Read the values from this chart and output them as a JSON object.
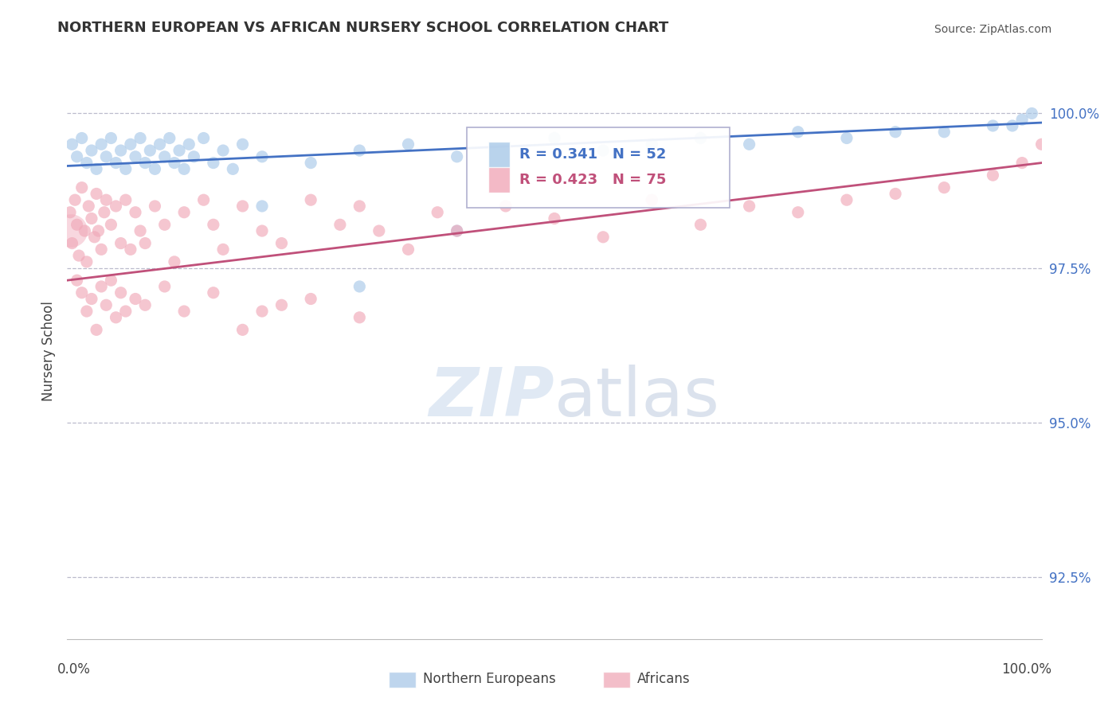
{
  "title": "NORTHERN EUROPEAN VS AFRICAN NURSERY SCHOOL CORRELATION CHART",
  "source": "Source: ZipAtlas.com",
  "ylabel": "Nursery School",
  "yticks": [
    92.5,
    95.0,
    97.5,
    100.0
  ],
  "ytick_labels": [
    "92.5%",
    "95.0%",
    "97.5%",
    "100.0%"
  ],
  "blue_R": 0.341,
  "blue_N": 52,
  "pink_R": 0.423,
  "pink_N": 75,
  "blue_color": "#A8C8E8",
  "pink_color": "#F0A8B8",
  "blue_line_color": "#4472C4",
  "pink_line_color": "#C0507A",
  "ytick_color": "#4472C4",
  "legend_label_blue": "Northern Europeans",
  "legend_label_pink": "Africans",
  "xlim": [
    0,
    100
  ],
  "ylim": [
    91.5,
    100.8
  ],
  "blue_points_x": [
    0.5,
    1.0,
    1.5,
    2.0,
    2.5,
    3.0,
    3.5,
    4.0,
    4.5,
    5.0,
    5.5,
    6.0,
    6.5,
    7.0,
    7.5,
    8.0,
    8.5,
    9.0,
    9.5,
    10.0,
    10.5,
    11.0,
    11.5,
    12.0,
    12.5,
    13.0,
    14.0,
    15.0,
    16.0,
    17.0,
    18.0,
    20.0,
    25.0,
    30.0,
    35.0,
    40.0,
    50.0,
    55.0,
    60.0,
    65.0,
    70.0,
    75.0,
    80.0,
    85.0,
    90.0,
    95.0,
    97.0,
    98.0,
    99.0,
    20.0,
    30.0,
    40.0
  ],
  "blue_points_y": [
    99.5,
    99.3,
    99.6,
    99.2,
    99.4,
    99.1,
    99.5,
    99.3,
    99.6,
    99.2,
    99.4,
    99.1,
    99.5,
    99.3,
    99.6,
    99.2,
    99.4,
    99.1,
    99.5,
    99.3,
    99.6,
    99.2,
    99.4,
    99.1,
    99.5,
    99.3,
    99.6,
    99.2,
    99.4,
    99.1,
    99.5,
    99.3,
    99.2,
    99.4,
    99.5,
    99.3,
    99.6,
    99.4,
    99.5,
    99.6,
    99.5,
    99.7,
    99.6,
    99.7,
    99.7,
    99.8,
    99.8,
    99.9,
    100.0,
    98.5,
    97.2,
    98.1
  ],
  "pink_points_x": [
    0.3,
    0.5,
    0.8,
    1.0,
    1.2,
    1.5,
    1.8,
    2.0,
    2.2,
    2.5,
    2.8,
    3.0,
    3.2,
    3.5,
    3.8,
    4.0,
    4.5,
    5.0,
    5.5,
    6.0,
    6.5,
    7.0,
    7.5,
    8.0,
    9.0,
    10.0,
    11.0,
    12.0,
    14.0,
    15.0,
    16.0,
    18.0,
    20.0,
    22.0,
    25.0,
    28.0,
    30.0,
    32.0,
    35.0,
    38.0,
    40.0,
    45.0,
    50.0,
    55.0,
    60.0,
    65.0,
    70.0,
    75.0,
    80.0,
    85.0,
    90.0,
    95.0,
    98.0,
    100.0,
    1.0,
    1.5,
    2.0,
    2.5,
    3.0,
    3.5,
    4.0,
    4.5,
    5.0,
    5.5,
    6.0,
    7.0,
    8.0,
    10.0,
    12.0,
    15.0,
    18.0,
    20.0,
    22.0,
    25.0,
    30.0
  ],
  "pink_points_y": [
    98.4,
    97.9,
    98.6,
    98.2,
    97.7,
    98.8,
    98.1,
    97.6,
    98.5,
    98.3,
    98.0,
    98.7,
    98.1,
    97.8,
    98.4,
    98.6,
    98.2,
    98.5,
    97.9,
    98.6,
    97.8,
    98.4,
    98.1,
    97.9,
    98.5,
    98.2,
    97.6,
    98.4,
    98.6,
    98.2,
    97.8,
    98.5,
    98.1,
    97.9,
    98.6,
    98.2,
    98.5,
    98.1,
    97.8,
    98.4,
    98.1,
    98.5,
    98.3,
    98.0,
    98.6,
    98.2,
    98.5,
    98.4,
    98.6,
    98.7,
    98.8,
    99.0,
    99.2,
    99.5,
    97.3,
    97.1,
    96.8,
    97.0,
    96.5,
    97.2,
    96.9,
    97.3,
    96.7,
    97.1,
    96.8,
    97.0,
    96.9,
    97.2,
    96.8,
    97.1,
    96.5,
    96.8,
    96.9,
    97.0,
    96.7
  ],
  "pink_big_x": [
    0.4
  ],
  "pink_big_y": [
    98.1
  ],
  "blue_line_x0": 0,
  "blue_line_x1": 100,
  "blue_line_y0": 99.15,
  "blue_line_y1": 99.85,
  "pink_line_x0": 0,
  "pink_line_x1": 100,
  "pink_line_y0": 97.3,
  "pink_line_y1": 99.2
}
